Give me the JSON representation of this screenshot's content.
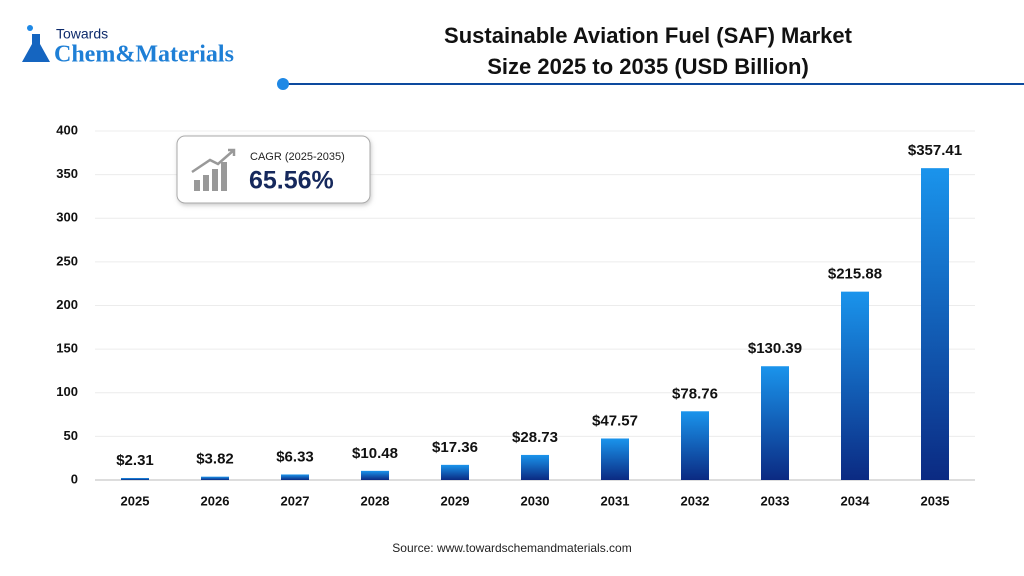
{
  "logo": {
    "line1": "Towards",
    "line2": "Chem&Materials"
  },
  "chart_data": {
    "type": "bar",
    "title": [
      "Sustainable Aviation Fuel (SAF) Market",
      "Size 2025 to 2035 (USD Billion)"
    ],
    "categories": [
      "2025",
      "2026",
      "2027",
      "2028",
      "2029",
      "2030",
      "2031",
      "2032",
      "2033",
      "2034",
      "2035"
    ],
    "values": [
      2.31,
      3.82,
      6.33,
      10.48,
      17.36,
      28.73,
      47.57,
      78.76,
      130.39,
      215.88,
      357.41
    ],
    "value_labels": [
      "$2.31",
      "$3.82",
      "$6.33",
      "$10.48",
      "$17.36",
      "$28.73",
      "$47.57",
      "$78.76",
      "$130.39",
      "$215.88",
      "$357.41"
    ],
    "colors": [
      "#1a94ec",
      "#0b2a82"
    ],
    "ylim": [
      0,
      400
    ],
    "yticks": [
      0,
      50,
      100,
      150,
      200,
      250,
      300,
      350,
      400
    ],
    "grid": true,
    "annotation": {
      "label": "CAGR (2025-2035)",
      "value": "65.56%"
    },
    "source": "Source: www.towardschemandmaterials.com"
  }
}
